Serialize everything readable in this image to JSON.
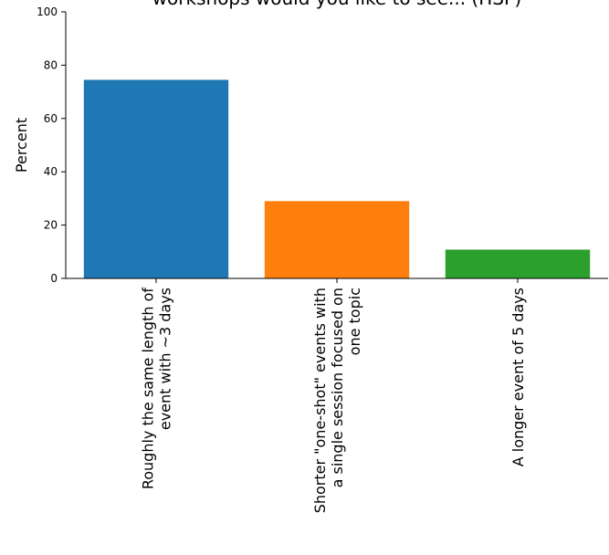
{
  "chart_data": {
    "type": "bar",
    "title": "workshops would you like to see... (HSF)",
    "ylabel": "Percent",
    "xlabel": "",
    "ylim": [
      0,
      100
    ],
    "yticks": [
      0,
      20,
      40,
      60,
      80,
      100
    ],
    "categories": [
      [
        "Roughly the same length of",
        "event with ~3 days"
      ],
      [
        "Shorter \"one-shot\" events with",
        "a single session focused on",
        "one topic"
      ],
      [
        "A longer event of 5 days"
      ]
    ],
    "values": [
      74.5,
      29,
      10.8
    ],
    "colors": [
      "#1f77b4",
      "#ff7f0e",
      "#2ca02c"
    ],
    "grid": false,
    "legend": "none"
  }
}
